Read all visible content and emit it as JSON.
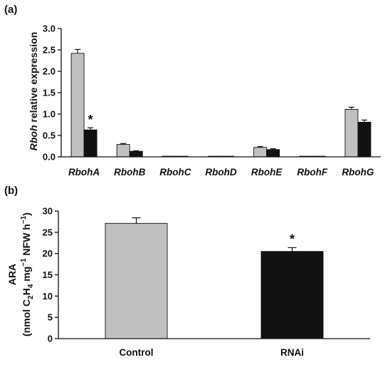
{
  "chart_data": [
    {
      "type": "bar",
      "panel_label": "(a)",
      "ylabel_italic": "Rboh",
      "ylabel_rest": " relative expression",
      "xlabel": "",
      "ylim": [
        0,
        3.0
      ],
      "yticks": [
        "0.0",
        "0.5",
        "1.0",
        "1.5",
        "2.0",
        "2.5",
        "3.0"
      ],
      "categories": [
        "RbohA",
        "RbohB",
        "RbohC",
        "RbohD",
        "RbohE",
        "RbohF",
        "RbohG"
      ],
      "series": [
        {
          "values": [
            2.42,
            0.29,
            0.0,
            0.0,
            0.22,
            0.0,
            1.11
          ],
          "errors": [
            0.09,
            0.02,
            0.0,
            0.0,
            0.02,
            0.0,
            0.05
          ],
          "color": "#c0c0c0"
        },
        {
          "values": [
            0.63,
            0.13,
            0.0,
            0.0,
            0.17,
            0.0,
            0.81
          ],
          "errors": [
            0.05,
            0.01,
            0.0,
            0.0,
            0.02,
            0.0,
            0.05
          ],
          "color": "#111111"
        }
      ],
      "annotations": [
        {
          "category": "RbohA",
          "series": 1,
          "text": "*"
        }
      ],
      "grid": false
    },
    {
      "type": "bar",
      "panel_label": "(b)",
      "ylabel_line1": "ARA",
      "ylabel_line2": "(nmol C2H4 mg−1 NFW h−1)",
      "xlabel": "",
      "ylim": [
        0,
        30
      ],
      "yticks": [
        "0",
        "5",
        "10",
        "15",
        "20",
        "25",
        "30"
      ],
      "categories": [
        "Control",
        "RNAi"
      ],
      "values": [
        27.1,
        20.5
      ],
      "errors": [
        1.3,
        0.9
      ],
      "colors": [
        "#c0c0c0",
        "#111111"
      ],
      "annotations": [
        {
          "category": "RNAi",
          "text": "*"
        }
      ],
      "grid": false
    }
  ]
}
